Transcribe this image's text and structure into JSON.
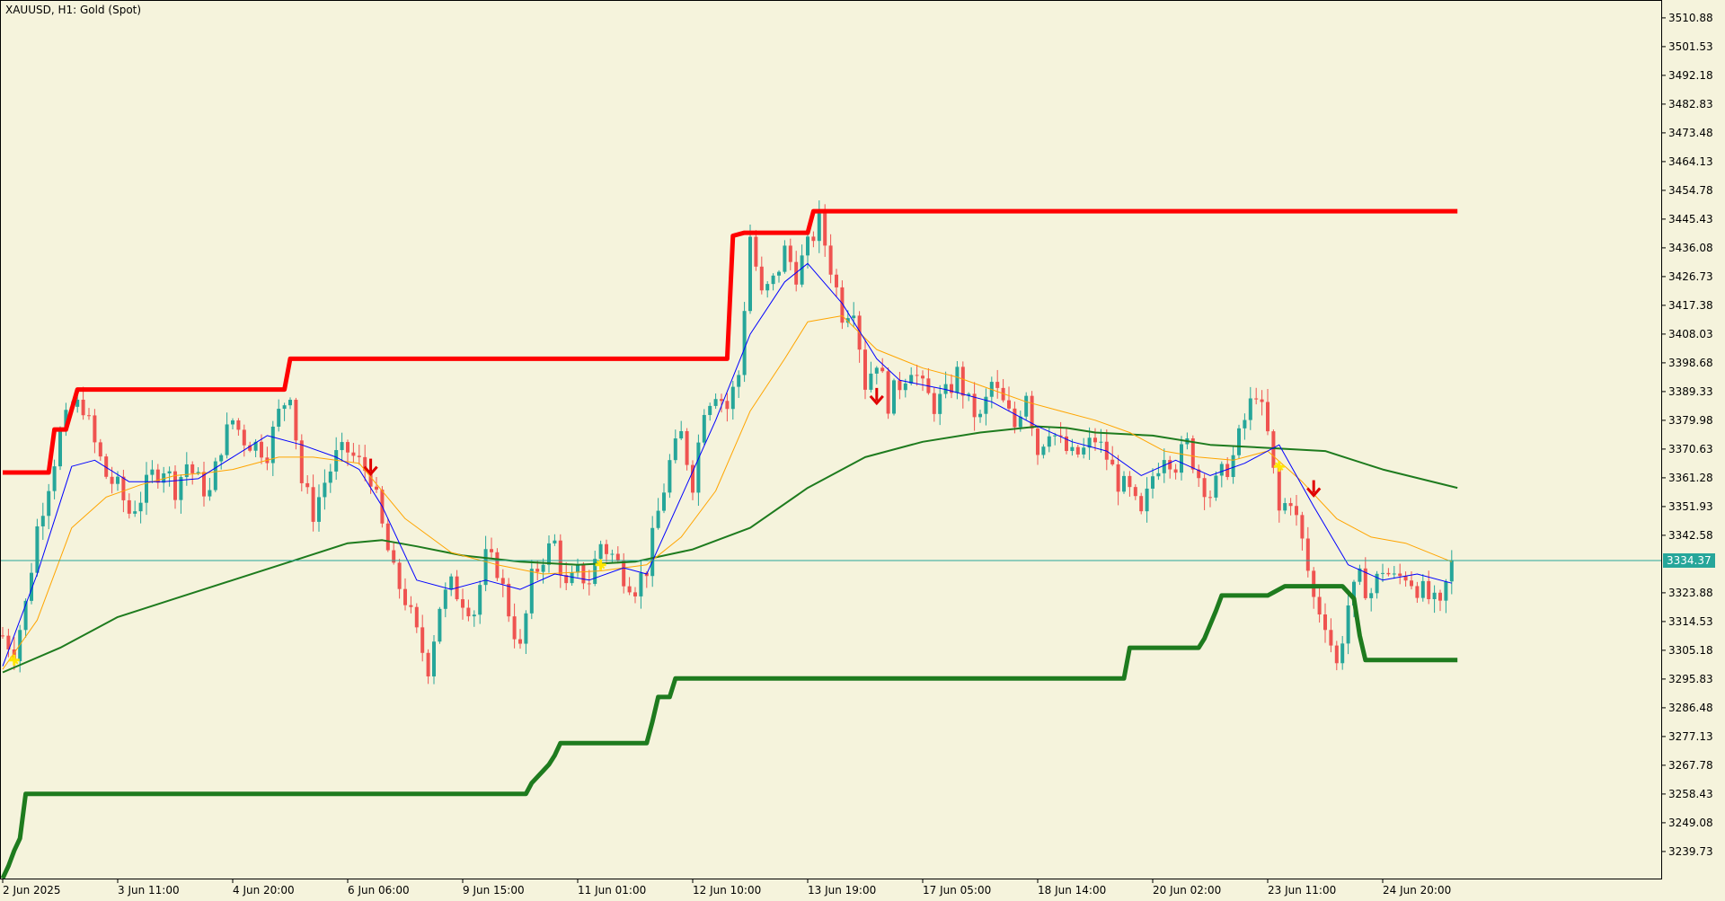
{
  "header": {
    "title": "XAUUSD, H1:  Gold (Spot)"
  },
  "current_price": {
    "label": "3334.37"
  },
  "colors": {
    "background": "#F5F3DC",
    "axis": "#000000",
    "bull_candle": "#26A69A",
    "bear_candle": "#EF5350",
    "upper_channel": "#FF0000",
    "lower_channel": "#1E7B1E",
    "fast_ma": "#0000FF",
    "mid_ma": "#FFA500",
    "slow_ma": "#1E7B1E",
    "price_line": "#26A69A",
    "buy_signal": "#FFE600",
    "sell_signal": "#E00000"
  },
  "chart_data": {
    "type": "candlestick",
    "symbol": "XAUUSD",
    "timeframe": "H1",
    "ylim": [
      3231.1,
      3513.7
    ],
    "y_ticks": [
      "3510.88",
      "3501.53",
      "3492.18",
      "3482.83",
      "3473.48",
      "3464.13",
      "3454.78",
      "3445.43",
      "3436.08",
      "3426.73",
      "3417.38",
      "3408.03",
      "3398.68",
      "3389.33",
      "3379.98",
      "3370.63",
      "3361.28",
      "3351.93",
      "3342.58",
      "3334.37",
      "3323.88",
      "3314.53",
      "3305.18",
      "3295.83",
      "3286.48",
      "3277.13",
      "3267.78",
      "3258.43",
      "3249.08",
      "3239.73"
    ],
    "x_ticks": [
      {
        "bar": 0,
        "label": "2 Jun 2025"
      },
      {
        "bar": 20,
        "label": "3 Jun 11:00"
      },
      {
        "bar": 40,
        "label": "4 Jun 20:00"
      },
      {
        "bar": 60,
        "label": "6 Jun 06:00"
      },
      {
        "bar": 80,
        "label": "9 Jun 15:00"
      },
      {
        "bar": 100,
        "label": "11 Jun 01:00"
      },
      {
        "bar": 120,
        "label": "12 Jun 10:00"
      },
      {
        "bar": 140,
        "label": "13 Jun 19:00"
      },
      {
        "bar": 160,
        "label": "17 Jun 05:00"
      },
      {
        "bar": 180,
        "label": "18 Jun 14:00"
      },
      {
        "bar": 200,
        "label": "20 Jun 02:00"
      },
      {
        "bar": 220,
        "label": "23 Jun 11:00"
      },
      {
        "bar": 240,
        "label": "24 Jun 20:00"
      }
    ],
    "close_path": [
      [
        0,
        3310
      ],
      [
        2,
        3305
      ],
      [
        4,
        3320
      ],
      [
        6,
        3345
      ],
      [
        8,
        3360
      ],
      [
        10,
        3375
      ],
      [
        12,
        3384
      ],
      [
        14,
        3385
      ],
      [
        16,
        3372
      ],
      [
        18,
        3362
      ],
      [
        20,
        3358
      ],
      [
        22,
        3350
      ],
      [
        24,
        3355
      ],
      [
        26,
        3362
      ],
      [
        28,
        3365
      ],
      [
        30,
        3358
      ],
      [
        32,
        3366
      ],
      [
        34,
        3360
      ],
      [
        36,
        3356
      ],
      [
        38,
        3372
      ],
      [
        40,
        3380
      ],
      [
        42,
        3374
      ],
      [
        44,
        3372
      ],
      [
        46,
        3370
      ],
      [
        48,
        3382
      ],
      [
        50,
        3390
      ],
      [
        52,
        3360
      ],
      [
        54,
        3350
      ],
      [
        56,
        3360
      ],
      [
        58,
        3368
      ],
      [
        60,
        3370
      ],
      [
        62,
        3366
      ],
      [
        64,
        3362
      ],
      [
        66,
        3345
      ],
      [
        68,
        3330
      ],
      [
        70,
        3322
      ],
      [
        72,
        3310
      ],
      [
        74,
        3300
      ],
      [
        76,
        3320
      ],
      [
        78,
        3326
      ],
      [
        80,
        3322
      ],
      [
        82,
        3318
      ],
      [
        84,
        3335
      ],
      [
        86,
        3332
      ],
      [
        88,
        3318
      ],
      [
        90,
        3305
      ],
      [
        92,
        3328
      ],
      [
        94,
        3336
      ],
      [
        96,
        3340
      ],
      [
        98,
        3325
      ],
      [
        100,
        3330
      ],
      [
        102,
        3328
      ],
      [
        104,
        3340
      ],
      [
        106,
        3336
      ],
      [
        108,
        3330
      ],
      [
        110,
        3326
      ],
      [
        112,
        3332
      ],
      [
        114,
        3350
      ],
      [
        116,
        3366
      ],
      [
        118,
        3375
      ],
      [
        120,
        3360
      ],
      [
        122,
        3385
      ],
      [
        124,
        3390
      ],
      [
        126,
        3384
      ],
      [
        128,
        3395
      ],
      [
        130,
        3440
      ],
      [
        132,
        3420
      ],
      [
        134,
        3425
      ],
      [
        136,
        3435
      ],
      [
        138,
        3428
      ],
      [
        140,
        3436
      ],
      [
        142,
        3445
      ],
      [
        144,
        3430
      ],
      [
        146,
        3415
      ],
      [
        148,
        3418
      ],
      [
        150,
        3392
      ],
      [
        152,
        3400
      ],
      [
        154,
        3386
      ],
      [
        156,
        3392
      ],
      [
        158,
        3398
      ],
      [
        160,
        3390
      ],
      [
        162,
        3385
      ],
      [
        164,
        3388
      ],
      [
        166,
        3395
      ],
      [
        168,
        3385
      ],
      [
        170,
        3380
      ],
      [
        172,
        3392
      ],
      [
        174,
        3385
      ],
      [
        176,
        3378
      ],
      [
        178,
        3390
      ],
      [
        180,
        3370
      ],
      [
        182,
        3378
      ],
      [
        184,
        3372
      ],
      [
        186,
        3368
      ],
      [
        188,
        3370
      ],
      [
        190,
        3374
      ],
      [
        192,
        3368
      ],
      [
        194,
        3360
      ],
      [
        196,
        3356
      ],
      [
        198,
        3348
      ],
      [
        200,
        3362
      ],
      [
        202,
        3370
      ],
      [
        204,
        3366
      ],
      [
        206,
        3372
      ],
      [
        208,
        3362
      ],
      [
        210,
        3356
      ],
      [
        212,
        3362
      ],
      [
        214,
        3368
      ],
      [
        216,
        3380
      ],
      [
        218,
        3390
      ],
      [
        220,
        3375
      ],
      [
        222,
        3350
      ],
      [
        224,
        3355
      ],
      [
        226,
        3340
      ],
      [
        228,
        3322
      ],
      [
        230,
        3315
      ],
      [
        232,
        3300
      ],
      [
        234,
        3320
      ],
      [
        236,
        3328
      ],
      [
        238,
        3324
      ],
      [
        240,
        3332
      ],
      [
        242,
        3328
      ],
      [
        244,
        3330
      ],
      [
        246,
        3326
      ],
      [
        248,
        3322
      ],
      [
        250,
        3318
      ],
      [
        252,
        3334.37
      ]
    ],
    "upper_channel": [
      [
        0,
        3363
      ],
      [
        8,
        3363
      ],
      [
        9,
        3377
      ],
      [
        11,
        3377
      ],
      [
        13,
        3390
      ],
      [
        49,
        3390
      ],
      [
        50,
        3400
      ],
      [
        126,
        3400
      ],
      [
        127,
        3440
      ],
      [
        129,
        3441
      ],
      [
        140,
        3441
      ],
      [
        141,
        3448
      ],
      [
        253,
        3448
      ]
    ],
    "lower_channel": [
      [
        0,
        3231
      ],
      [
        1,
        3235
      ],
      [
        2,
        3240
      ],
      [
        3,
        3244
      ],
      [
        4,
        3258.5
      ],
      [
        91,
        3258.5
      ],
      [
        92,
        3262
      ],
      [
        94,
        3266
      ],
      [
        95,
        3268
      ],
      [
        96,
        3271
      ],
      [
        97,
        3275
      ],
      [
        112,
        3275
      ],
      [
        113,
        3282
      ],
      [
        114,
        3290
      ],
      [
        116,
        3290
      ],
      [
        117,
        3296
      ],
      [
        195,
        3296
      ],
      [
        196,
        3306
      ],
      [
        208,
        3306
      ],
      [
        209,
        3309
      ],
      [
        211,
        3318
      ],
      [
        212,
        3323
      ],
      [
        220,
        3323
      ],
      [
        221,
        3324
      ],
      [
        223,
        3326
      ],
      [
        233,
        3326
      ],
      [
        235,
        3322
      ],
      [
        236,
        3310
      ],
      [
        237,
        3302
      ],
      [
        253,
        3302
      ]
    ],
    "slow_ma": [
      [
        0,
        3298
      ],
      [
        10,
        3306
      ],
      [
        20,
        3316
      ],
      [
        30,
        3322
      ],
      [
        40,
        3328
      ],
      [
        50,
        3334
      ],
      [
        60,
        3340
      ],
      [
        66,
        3341
      ],
      [
        72,
        3339
      ],
      [
        80,
        3336
      ],
      [
        90,
        3334
      ],
      [
        100,
        3333
      ],
      [
        110,
        3334
      ],
      [
        120,
        3338
      ],
      [
        130,
        3345
      ],
      [
        140,
        3358
      ],
      [
        150,
        3368
      ],
      [
        160,
        3373
      ],
      [
        170,
        3376
      ],
      [
        180,
        3378
      ],
      [
        185,
        3377.5
      ],
      [
        190,
        3376
      ],
      [
        200,
        3375
      ],
      [
        210,
        3372
      ],
      [
        220,
        3371
      ],
      [
        230,
        3370
      ],
      [
        240,
        3364
      ],
      [
        253,
        3358
      ]
    ],
    "mid_ma": [
      [
        0,
        3299
      ],
      [
        6,
        3315
      ],
      [
        12,
        3345
      ],
      [
        18,
        3355
      ],
      [
        24,
        3359
      ],
      [
        30,
        3362
      ],
      [
        36,
        3363
      ],
      [
        40,
        3364
      ],
      [
        48,
        3368
      ],
      [
        54,
        3368
      ],
      [
        62,
        3366
      ],
      [
        70,
        3348
      ],
      [
        78,
        3337
      ],
      [
        86,
        3333
      ],
      [
        94,
        3330
      ],
      [
        104,
        3331
      ],
      [
        112,
        3333
      ],
      [
        118,
        3342
      ],
      [
        124,
        3357
      ],
      [
        130,
        3383
      ],
      [
        136,
        3400
      ],
      [
        140,
        3412
      ],
      [
        146,
        3414
      ],
      [
        152,
        3403
      ],
      [
        160,
        3397
      ],
      [
        166,
        3394
      ],
      [
        172,
        3390
      ],
      [
        178,
        3386
      ],
      [
        184,
        3383
      ],
      [
        190,
        3380
      ],
      [
        196,
        3376
      ],
      [
        202,
        3370
      ],
      [
        208,
        3368
      ],
      [
        214,
        3367
      ],
      [
        220,
        3370
      ],
      [
        226,
        3360
      ],
      [
        232,
        3348
      ],
      [
        238,
        3342
      ],
      [
        244,
        3340
      ],
      [
        252,
        3334
      ]
    ],
    "fast_ma": [
      [
        0,
        3300
      ],
      [
        6,
        3330
      ],
      [
        12,
        3365
      ],
      [
        16,
        3367
      ],
      [
        22,
        3360
      ],
      [
        28,
        3360
      ],
      [
        34,
        3361
      ],
      [
        40,
        3368
      ],
      [
        46,
        3375
      ],
      [
        52,
        3372
      ],
      [
        58,
        3368
      ],
      [
        62,
        3364
      ],
      [
        66,
        3352
      ],
      [
        72,
        3328
      ],
      [
        78,
        3325
      ],
      [
        84,
        3328
      ],
      [
        90,
        3325
      ],
      [
        96,
        3330
      ],
      [
        102,
        3328
      ],
      [
        108,
        3332
      ],
      [
        112,
        3330
      ],
      [
        118,
        3355
      ],
      [
        124,
        3380
      ],
      [
        130,
        3408
      ],
      [
        136,
        3425
      ],
      [
        140,
        3431
      ],
      [
        146,
        3418
      ],
      [
        152,
        3400
      ],
      [
        156,
        3393
      ],
      [
        164,
        3390
      ],
      [
        172,
        3386
      ],
      [
        180,
        3378
      ],
      [
        186,
        3373
      ],
      [
        192,
        3370
      ],
      [
        198,
        3362
      ],
      [
        204,
        3367
      ],
      [
        210,
        3362
      ],
      [
        216,
        3366
      ],
      [
        222,
        3372
      ],
      [
        228,
        3352
      ],
      [
        234,
        3333
      ],
      [
        240,
        3328
      ],
      [
        246,
        3330
      ],
      [
        252,
        3327
      ]
    ],
    "buy_signals": [
      [
        2,
        3302
      ],
      [
        104,
        3333
      ],
      [
        222,
        3365
      ]
    ],
    "sell_signals": [
      [
        64,
        3364
      ],
      [
        152,
        3387
      ],
      [
        228,
        3357
      ]
    ]
  }
}
